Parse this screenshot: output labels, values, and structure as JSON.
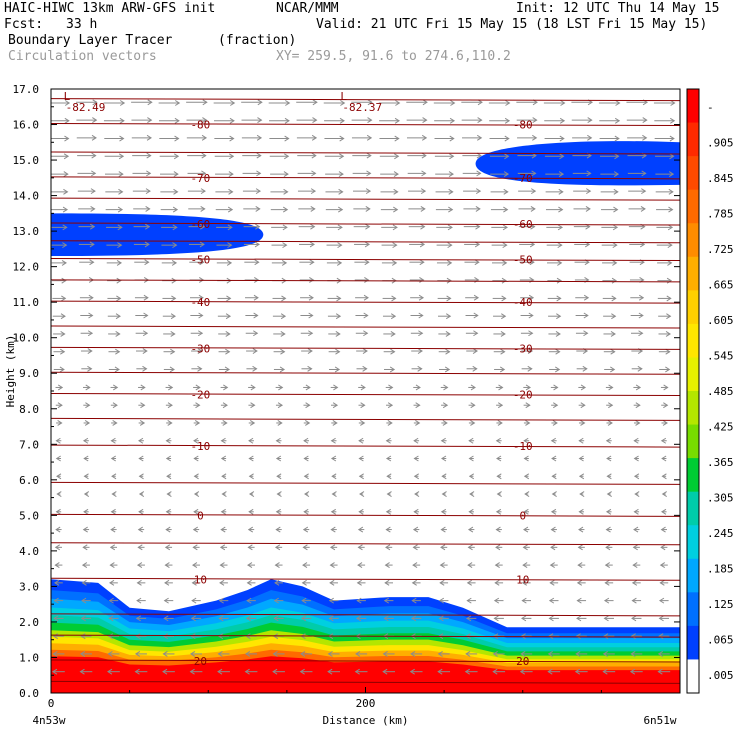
{
  "header": {
    "model": "HAIC-HIWC 13km ARW-GFS init",
    "org": "NCAR/MMM",
    "init": "Init: 12 UTC Thu 14 May 15",
    "fcst_label": "Fcst:",
    "fcst_value": "33 h",
    "valid": "Valid: 21 UTC Fri 15 May 15 (18 LST Fri 15 May 15)",
    "field": "Boundary Layer Tracer",
    "field_units": "(fraction)",
    "overlay": "Circulation vectors",
    "xy": "XY= 259.5, 91.6 to 274.6,110.2"
  },
  "chart_data": {
    "type": "heatmap",
    "ylabel": "Height (km)",
    "xlabel": "Distance (km)",
    "ylim": [
      0,
      17
    ],
    "xlim": [
      0,
      400
    ],
    "y_ticks": [
      "0.0",
      "1.0",
      "2.0",
      "3.0",
      "4.0",
      "5.0",
      "6.0",
      "7.0",
      "8.0",
      "9.0",
      "10.0",
      "11.0",
      "12.0",
      "13.0",
      "14.0",
      "15.0",
      "16.0",
      "17.0"
    ],
    "x_ticks": [
      {
        "value": 0,
        "label": "0"
      },
      {
        "value": 200,
        "label": "200"
      }
    ],
    "x_endpoints": {
      "left": "4n53w",
      "right": "6n51w"
    },
    "colorbar": {
      "labels": [
        "-",
        ".905",
        ".845",
        ".785",
        ".725",
        ".665",
        ".605",
        ".545",
        ".485",
        ".425",
        ".365",
        ".305",
        ".245",
        ".185",
        ".125",
        ".065",
        ".005"
      ],
      "colors": [
        "#ff0000",
        "#ff2a00",
        "#ff4a00",
        "#ff6a00",
        "#ff8c00",
        "#ffae00",
        "#ffd000",
        "#ffe600",
        "#e6f000",
        "#b4e600",
        "#78dc00",
        "#00cc33",
        "#00ccaa",
        "#00cfe0",
        "#00a8ff",
        "#0070ff",
        "#0040ff",
        "#ffffff"
      ]
    },
    "temperature_contours": [
      {
        "label": "20",
        "y": 0.9
      },
      {
        "label": "10",
        "y": 3.2
      },
      {
        "label": "0",
        "y": 5.0
      },
      {
        "label": "-10",
        "y": 6.95
      },
      {
        "label": "-20",
        "y": 8.4
      },
      {
        "label": "-30",
        "y": 9.7
      },
      {
        "label": "-40",
        "y": 11.0
      },
      {
        "label": "-50",
        "y": 12.2
      },
      {
        "label": "-60",
        "y": 13.2
      },
      {
        "label": "-70",
        "y": 14.5
      },
      {
        "label": "-80",
        "y": 16.0
      }
    ],
    "extra_contour_heights": [
      0.3,
      1.6,
      2.2,
      4.2,
      5.9,
      7.7,
      9.0,
      10.3,
      11.6,
      12.7,
      13.9,
      15.2,
      16.7
    ],
    "contour_color": "#8b0000",
    "low_markers": [
      {
        "symbol": "L",
        "value": "-82.49",
        "x": 8,
        "y": 16.8
      },
      {
        "symbol": "L",
        "value": "-82.37",
        "x": 184,
        "y": 16.8
      }
    ],
    "boundary_layer_top_km": [
      {
        "x": 0,
        "y": 3.2
      },
      {
        "x": 30,
        "y": 3.1
      },
      {
        "x": 50,
        "y": 2.4
      },
      {
        "x": 75,
        "y": 2.3
      },
      {
        "x": 105,
        "y": 2.6
      },
      {
        "x": 125,
        "y": 2.9
      },
      {
        "x": 140,
        "y": 3.2
      },
      {
        "x": 160,
        "y": 3.0
      },
      {
        "x": 180,
        "y": 2.6
      },
      {
        "x": 215,
        "y": 2.7
      },
      {
        "x": 240,
        "y": 2.7
      },
      {
        "x": 262,
        "y": 2.4
      },
      {
        "x": 290,
        "y": 1.85
      },
      {
        "x": 400,
        "y": 1.85
      }
    ],
    "upper_tracer_patches": [
      {
        "x_range": [
          0,
          135
        ],
        "y_range": [
          12.3,
          13.5
        ]
      },
      {
        "x_range": [
          270,
          400
        ],
        "y_range": [
          14.3,
          15.5
        ]
      }
    ]
  }
}
